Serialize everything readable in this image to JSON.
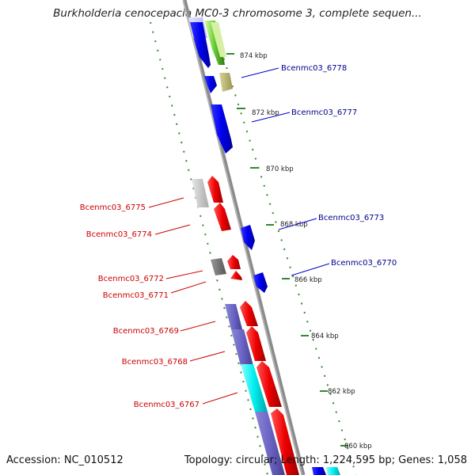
{
  "title": "Burkholderia cenocepacia MC0-3 chromosome 3, complete sequen...",
  "accession": "Accession: NC_010512",
  "summary": "Topology: circular; Length: 1,224,595 bp; Genes: 1,058",
  "ticks": [
    "874 kbp",
    "872 kbp",
    "870 kbp",
    "868 kbp",
    "866 kbp",
    "864 kbp",
    "862 kbp",
    "860 kbp"
  ],
  "labels_right": [
    "Bcenmc03_6778",
    "Bcenmc03_6777",
    "Bcenmc03_6773",
    "Bcenmc03_6770"
  ],
  "labels_left": [
    "Bcenmc03_6775",
    "Bcenmc03_6774",
    "Bcenmc03_6772",
    "Bcenmc03_6771",
    "Bcenmc03_6769",
    "Bcenmc03_6768",
    "Bcenmc03_6767"
  ],
  "colors": {
    "forward": "#0000ee",
    "reverse": "#ee0000",
    "right_label": "#00008b",
    "left_label": "#cc0000",
    "backbone": "#808080",
    "tick_ring": "#2e8b2e"
  }
}
